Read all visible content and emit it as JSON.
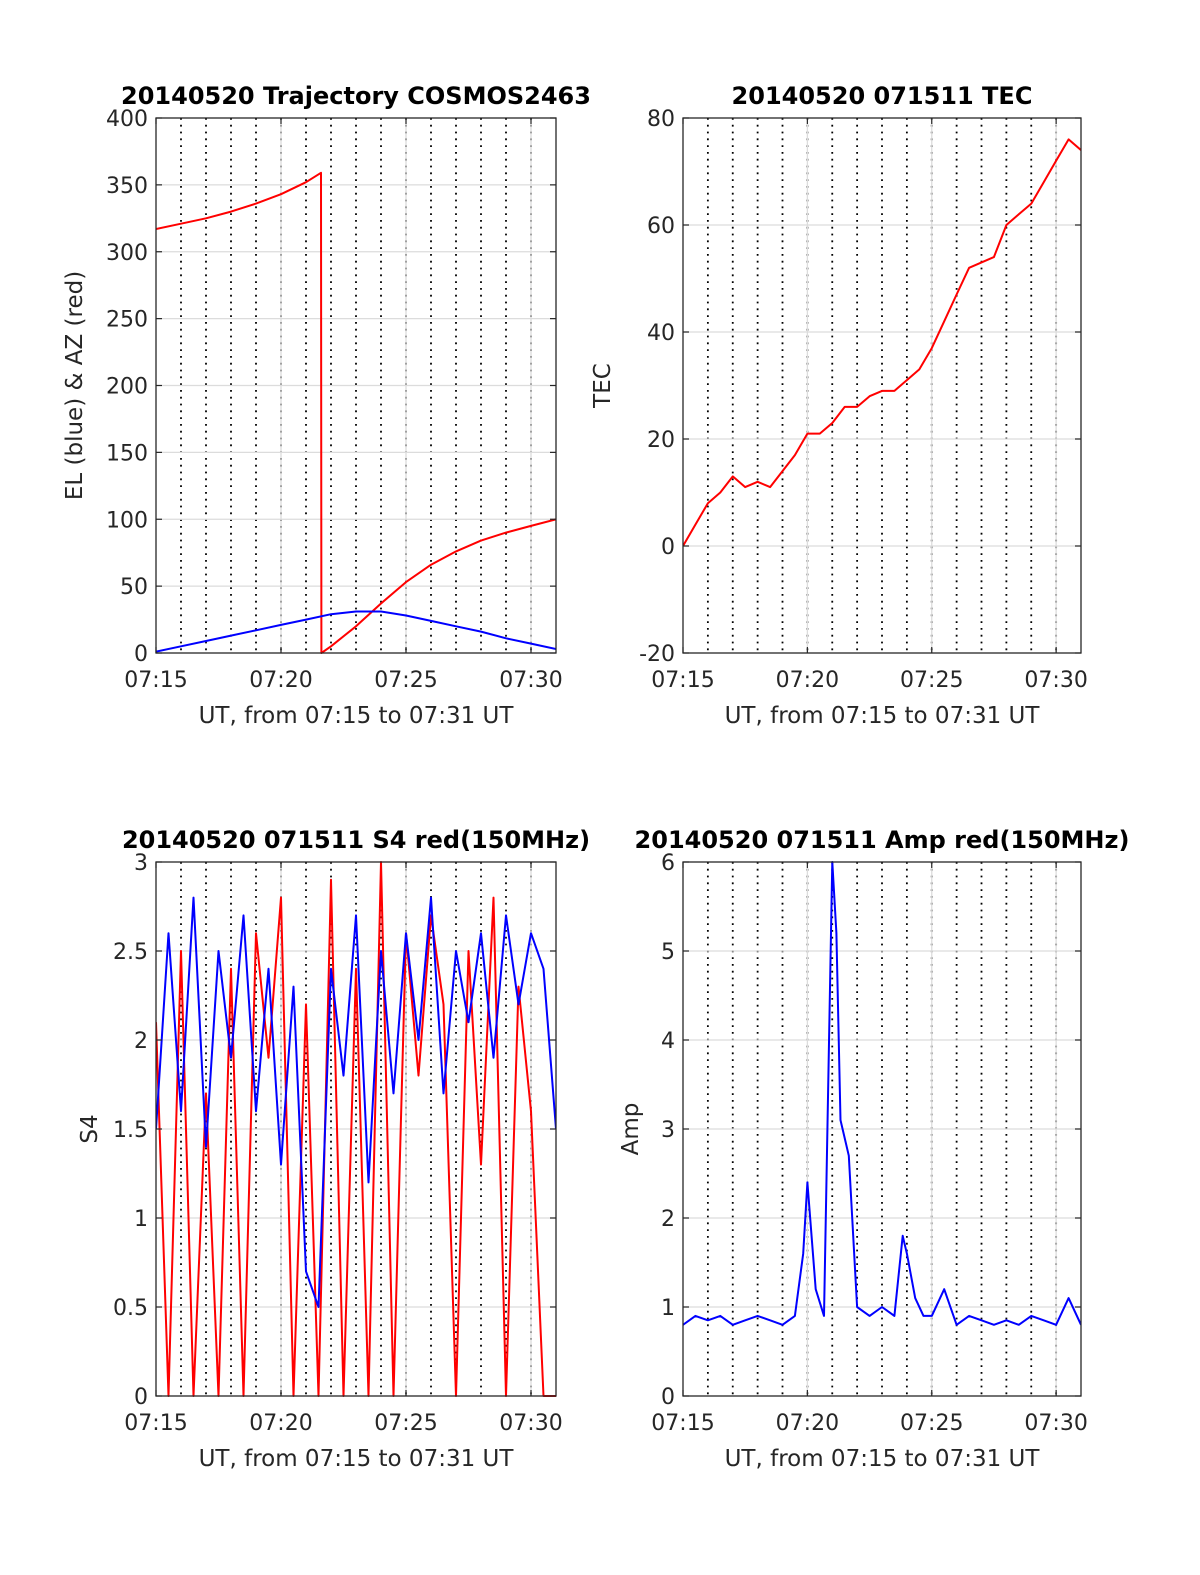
{
  "chart_data": [
    {
      "type": "line",
      "title": "20140520 Trajectory COSMOS2463",
      "xlabel": "UT, from 07:15 to 07:31 UT",
      "ylabel": "EL (blue) & AZ (red)",
      "xlim": [
        "07:15",
        "07:31"
      ],
      "ylim": [
        0,
        400
      ],
      "x_tick_labels": [
        "07:15",
        "07:20",
        "07:25",
        "07:30"
      ],
      "y_tick_labels": [
        "0",
        "50",
        "100",
        "150",
        "200",
        "250",
        "300",
        "350",
        "400"
      ],
      "grid": true,
      "series": [
        {
          "color": "#ff0000",
          "x": [
            "07:15",
            "07:16",
            "07:17",
            "07:18",
            "07:19",
            "07:20",
            "07:21",
            "07:21:36",
            "07:21:37",
            "07:22",
            "07:23",
            "07:24",
            "07:25",
            "07:26",
            "07:27",
            "07:28",
            "07:29",
            "07:30",
            "07:31"
          ],
          "values": [
            317,
            321,
            325,
            330,
            336,
            343,
            352,
            359,
            0,
            5,
            20,
            37,
            53,
            66,
            76,
            84,
            90,
            95,
            100
          ]
        },
        {
          "color": "#0000ff",
          "x": [
            "07:15",
            "07:16",
            "07:17",
            "07:18",
            "07:19",
            "07:20",
            "07:21",
            "07:22",
            "07:23",
            "07:24",
            "07:25",
            "07:26",
            "07:27",
            "07:28",
            "07:29",
            "07:30",
            "07:31"
          ],
          "values": [
            1,
            5,
            9,
            13,
            17,
            21,
            25,
            29,
            31,
            31,
            28,
            24,
            20,
            16,
            11,
            7,
            3
          ]
        }
      ]
    },
    {
      "type": "line",
      "title": "20140520 071511 TEC",
      "xlabel": "UT, from 07:15 to 07:31 UT",
      "ylabel": "TEC",
      "xlim": [
        "07:15",
        "07:31"
      ],
      "ylim": [
        -20,
        80
      ],
      "x_tick_labels": [
        "07:15",
        "07:20",
        "07:25",
        "07:30"
      ],
      "y_tick_labels": [
        "-20",
        "0",
        "20",
        "40",
        "60",
        "80"
      ],
      "grid": true,
      "series": [
        {
          "color": "#ff0000",
          "x": [
            "07:15",
            "07:15:30",
            "07:16",
            "07:16:30",
            "07:17",
            "07:17:30",
            "07:18",
            "07:18:30",
            "07:19",
            "07:19:30",
            "07:20",
            "07:20:30",
            "07:21",
            "07:21:30",
            "07:22",
            "07:22:30",
            "07:23",
            "07:23:30",
            "07:24",
            "07:24:30",
            "07:25",
            "07:25:30",
            "07:26",
            "07:26:30",
            "07:27",
            "07:27:30",
            "07:28",
            "07:28:30",
            "07:29",
            "07:29:30",
            "07:30",
            "07:30:30",
            "07:31"
          ],
          "values": [
            0,
            4,
            8,
            10,
            13,
            11,
            12,
            11,
            14,
            17,
            21,
            21,
            23,
            26,
            26,
            28,
            29,
            29,
            31,
            33,
            37,
            42,
            47,
            52,
            53,
            54,
            60,
            62,
            64,
            68,
            72,
            76,
            74
          ]
        }
      ]
    },
    {
      "type": "line",
      "title": "20140520 071511 S4 red(150MHz)",
      "xlabel": "UT, from 07:15 to 07:31 UT",
      "ylabel": "S4",
      "xlim": [
        "07:15",
        "07:31"
      ],
      "ylim": [
        0,
        3
      ],
      "x_tick_labels": [
        "07:15",
        "07:20",
        "07:25",
        "07:30"
      ],
      "y_tick_labels": [
        "0",
        "0.5",
        "1",
        "1.5",
        "2",
        "2.5",
        "3"
      ],
      "grid": true,
      "series": [
        {
          "color": "#ff0000",
          "x": [
            "07:15",
            "07:15:30",
            "07:16",
            "07:16:30",
            "07:17",
            "07:17:30",
            "07:18",
            "07:18:30",
            "07:19",
            "07:19:30",
            "07:20",
            "07:20:30",
            "07:21",
            "07:21:30",
            "07:22",
            "07:22:30",
            "07:23",
            "07:23:30",
            "07:24",
            "07:24:30",
            "07:25",
            "07:25:30",
            "07:26",
            "07:26:30",
            "07:27",
            "07:27:30",
            "07:28",
            "07:28:30",
            "07:29",
            "07:29:30",
            "07:30",
            "07:30:30",
            "07:31"
          ],
          "values": [
            2.1,
            0,
            2.5,
            0,
            1.7,
            0,
            2.4,
            0,
            2.6,
            1.9,
            2.8,
            0,
            2.2,
            0,
            2.9,
            0,
            2.4,
            0,
            3.0,
            0,
            2.6,
            1.8,
            2.7,
            2.2,
            0,
            2.5,
            1.3,
            2.8,
            0,
            2.3,
            1.6,
            0,
            0
          ]
        },
        {
          "color": "#0000ff",
          "x": [
            "07:15",
            "07:15:30",
            "07:16",
            "07:16:30",
            "07:17",
            "07:17:30",
            "07:18",
            "07:18:30",
            "07:19",
            "07:19:30",
            "07:20",
            "07:20:30",
            "07:21",
            "07:21:30",
            "07:22",
            "07:22:30",
            "07:23",
            "07:23:30",
            "07:24",
            "07:24:30",
            "07:25",
            "07:25:30",
            "07:26",
            "07:26:30",
            "07:27",
            "07:27:30",
            "07:28",
            "07:28:30",
            "07:29",
            "07:29:30",
            "07:30",
            "07:30:30",
            "07:31"
          ],
          "values": [
            1.5,
            2.6,
            1.6,
            2.8,
            1.4,
            2.5,
            1.9,
            2.7,
            1.6,
            2.4,
            1.3,
            2.3,
            0.7,
            0.5,
            2.4,
            1.8,
            2.7,
            1.2,
            2.5,
            1.7,
            2.6,
            2.0,
            2.8,
            1.7,
            2.5,
            2.1,
            2.6,
            1.9,
            2.7,
            2.2,
            2.6,
            2.4,
            1.5
          ]
        }
      ]
    },
    {
      "type": "line",
      "title": "20140520 071511 Amp red(150MHz)",
      "xlabel": "UT, from 07:15 to 07:31 UT",
      "ylabel": "Amp",
      "xlim": [
        "07:15",
        "07:31"
      ],
      "ylim": [
        0,
        6
      ],
      "x_tick_labels": [
        "07:15",
        "07:20",
        "07:25",
        "07:30"
      ],
      "y_tick_labels": [
        "0",
        "1",
        "2",
        "3",
        "4",
        "5",
        "6"
      ],
      "grid": true,
      "series": [
        {
          "color": "#0000ff",
          "x": [
            "07:15",
            "07:15:30",
            "07:16",
            "07:16:30",
            "07:17",
            "07:17:30",
            "07:18",
            "07:18:30",
            "07:19",
            "07:19:30",
            "07:19:50",
            "07:20",
            "07:20:20",
            "07:20:40",
            "07:21",
            "07:21:10",
            "07:21:20",
            "07:21:40",
            "07:22",
            "07:22:30",
            "07:23",
            "07:23:30",
            "07:23:50",
            "07:24",
            "07:24:20",
            "07:24:40",
            "07:25",
            "07:25:30",
            "07:26",
            "07:26:30",
            "07:27",
            "07:27:30",
            "07:28",
            "07:28:30",
            "07:29",
            "07:29:30",
            "07:30",
            "07:30:30",
            "07:31"
          ],
          "values": [
            0.8,
            0.9,
            0.85,
            0.9,
            0.8,
            0.85,
            0.9,
            0.85,
            0.8,
            0.9,
            1.6,
            2.4,
            1.2,
            0.9,
            6.0,
            5.2,
            3.1,
            2.7,
            1.0,
            0.9,
            1.0,
            0.9,
            1.8,
            1.6,
            1.1,
            0.9,
            0.9,
            1.2,
            0.8,
            0.9,
            0.85,
            0.8,
            0.85,
            0.8,
            0.9,
            0.85,
            0.8,
            1.1,
            0.8
          ]
        }
      ]
    }
  ]
}
